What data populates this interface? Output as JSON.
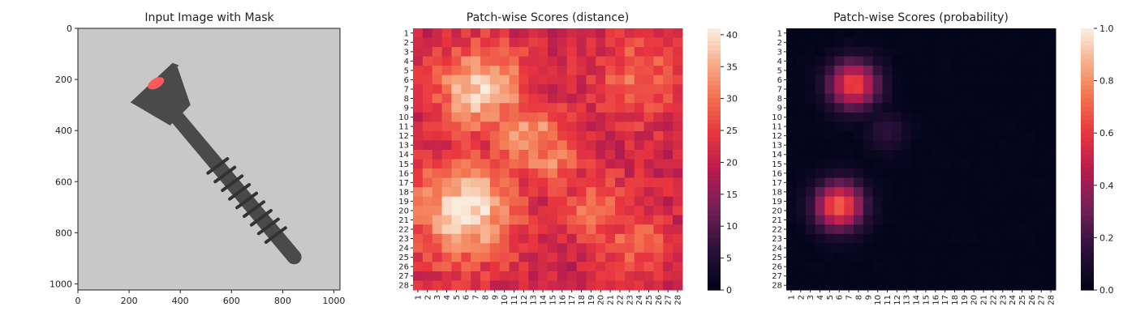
{
  "chart_data": [
    {
      "type": "image",
      "title": "Input Image with Mask",
      "x_ticks": [
        "0",
        "200",
        "400",
        "600",
        "800",
        "1000"
      ],
      "y_ticks": [
        "0",
        "200",
        "400",
        "600",
        "800",
        "1000"
      ],
      "xlim": [
        0,
        1024
      ],
      "ylim": [
        1024,
        0
      ],
      "colors": {
        "background": "#c8c8c8",
        "object": "#4a4a4a",
        "mask": "#ff5a5a"
      }
    },
    {
      "type": "heatmap",
      "title": "Patch-wise Scores (distance)",
      "x_ticks": [
        "1",
        "2",
        "3",
        "4",
        "5",
        "6",
        "7",
        "8",
        "9",
        "10",
        "11",
        "12",
        "13",
        "14",
        "15",
        "16",
        "17",
        "18",
        "19",
        "20",
        "21",
        "22",
        "23",
        "24",
        "25",
        "26",
        "27",
        "28"
      ],
      "y_ticks": [
        "1",
        "2",
        "3",
        "4",
        "5",
        "6",
        "7",
        "8",
        "9",
        "10",
        "11",
        "12",
        "13",
        "14",
        "15",
        "16",
        "17",
        "18",
        "19",
        "20",
        "21",
        "22",
        "23",
        "24",
        "25",
        "26",
        "27",
        "28"
      ],
      "value_range": [
        0,
        41
      ],
      "colorbar_ticks": [
        "0",
        "5",
        "10",
        "15",
        "20",
        "25",
        "30",
        "35",
        "40"
      ],
      "colormap": "rocket",
      "base_value": 21,
      "hotspots": [
        {
          "row": 7,
          "col": 7.5,
          "radius": 3.2,
          "peak": 39
        },
        {
          "row": 12,
          "col": 12.5,
          "radius": 2.6,
          "peak": 35
        },
        {
          "row": 14.5,
          "col": 14.5,
          "radius": 2.2,
          "peak": 32
        },
        {
          "row": 20,
          "col": 6,
          "radius": 3.8,
          "peak": 40
        },
        {
          "row": 19.5,
          "col": 19.5,
          "radius": 2.6,
          "peak": 30
        },
        {
          "row": 23.5,
          "col": 23.5,
          "radius": 2.6,
          "peak": 29
        },
        {
          "row": 6,
          "col": 24,
          "radius": 3.2,
          "peak": 30
        }
      ]
    },
    {
      "type": "heatmap",
      "title": "Patch-wise Scores (probability)",
      "x_ticks": [
        "1",
        "2",
        "3",
        "4",
        "5",
        "6",
        "7",
        "8",
        "9",
        "10",
        "11",
        "12",
        "13",
        "14",
        "15",
        "16",
        "17",
        "18",
        "19",
        "20",
        "21",
        "22",
        "23",
        "24",
        "25",
        "26",
        "27",
        "28"
      ],
      "y_ticks": [
        "1",
        "2",
        "3",
        "4",
        "5",
        "6",
        "7",
        "8",
        "9",
        "10",
        "11",
        "12",
        "13",
        "14",
        "15",
        "16",
        "17",
        "18",
        "19",
        "20",
        "21",
        "22",
        "23",
        "24",
        "25",
        "26",
        "27",
        "28"
      ],
      "value_range": [
        0,
        1.0
      ],
      "colorbar_ticks": [
        "0.0",
        "0.2",
        "0.4",
        "0.6",
        "0.8",
        "1.0"
      ],
      "colormap": "rocket",
      "base_value": 0.0,
      "hotspots": [
        {
          "row": 6.5,
          "col": 7.5,
          "radius": 1.8,
          "peak": 0.65
        },
        {
          "row": 11.5,
          "col": 11,
          "radius": 1.5,
          "peak": 0.15
        },
        {
          "row": 19.5,
          "col": 6,
          "radius": 1.8,
          "peak": 0.7
        }
      ]
    }
  ]
}
